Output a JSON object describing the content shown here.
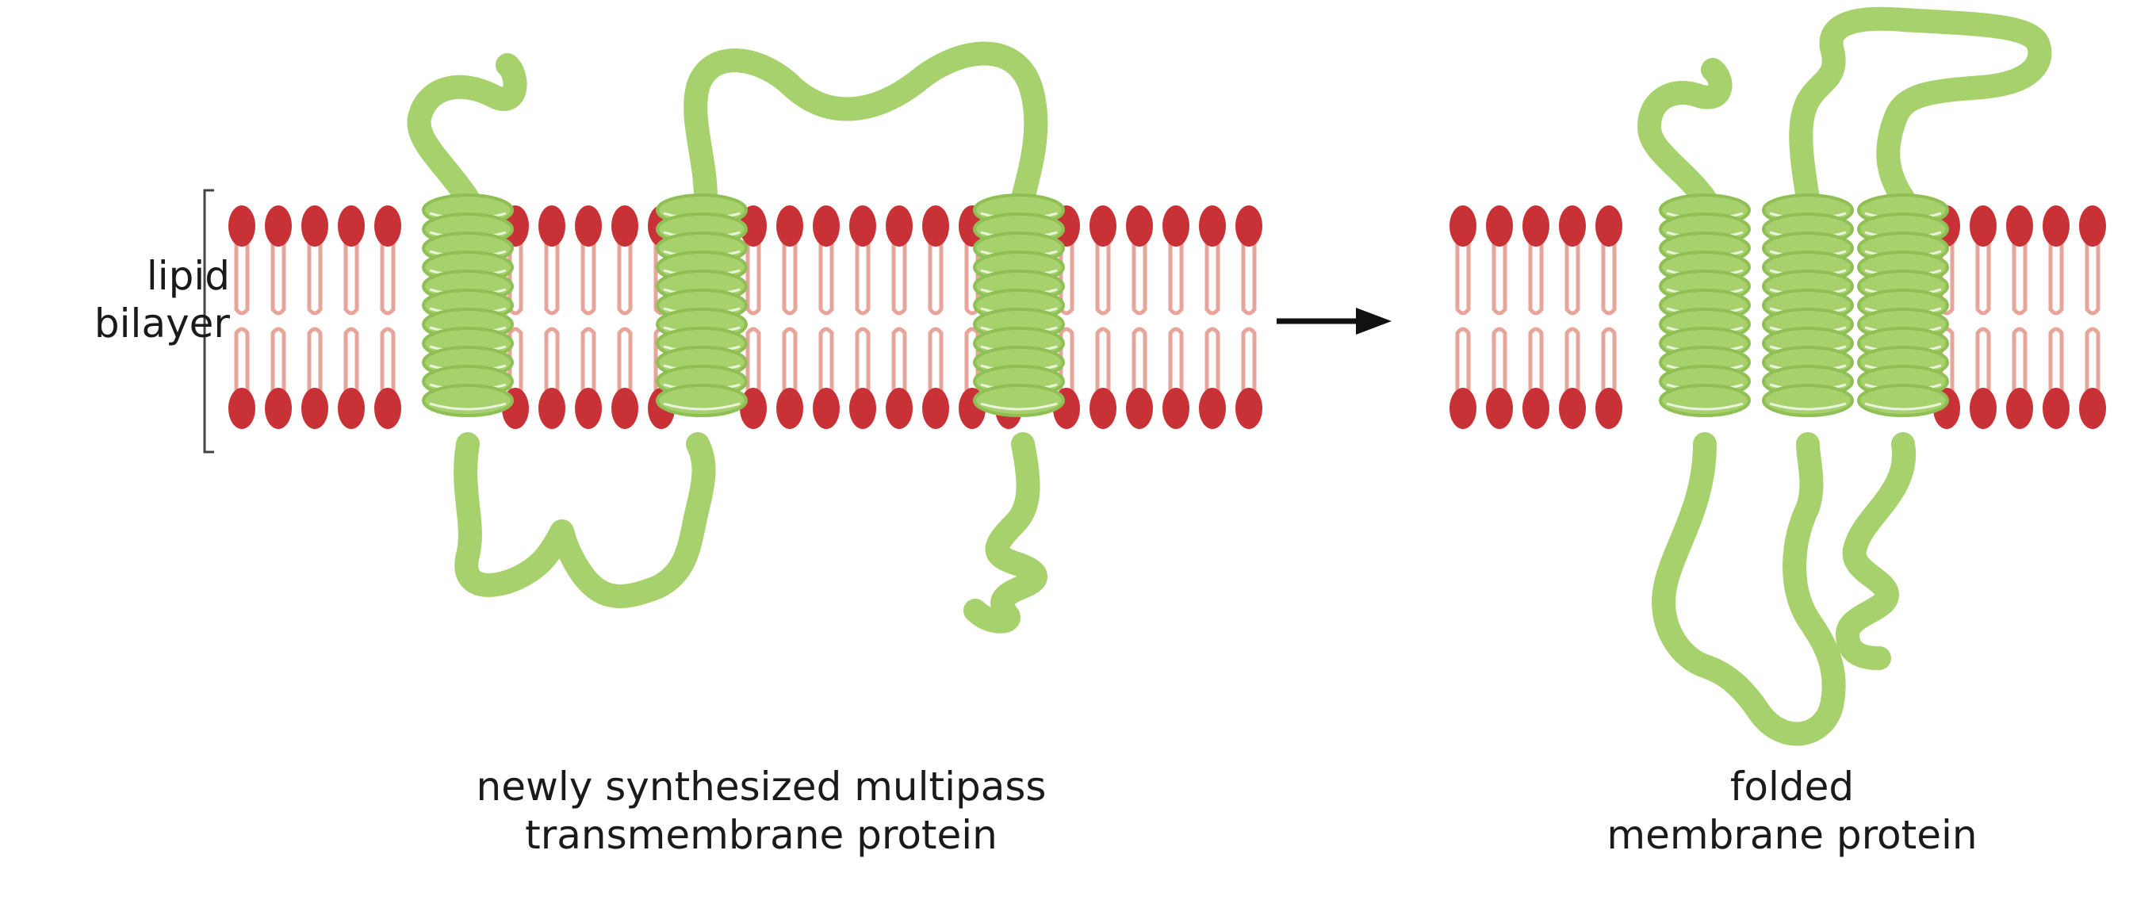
{
  "labels": {
    "bilayer_line1": "lipid",
    "bilayer_line2": "bilayer",
    "left_caption_line1": "newly synthesized multipass",
    "left_caption_line2": "transmembrane protein",
    "right_caption_line1": "folded",
    "right_caption_line2": "membrane protein"
  },
  "colors": {
    "lipid_head": "#c83236",
    "lipid_tail": "#e6a49a",
    "protein": "#a6d16c",
    "text": "#1a1a1a"
  }
}
